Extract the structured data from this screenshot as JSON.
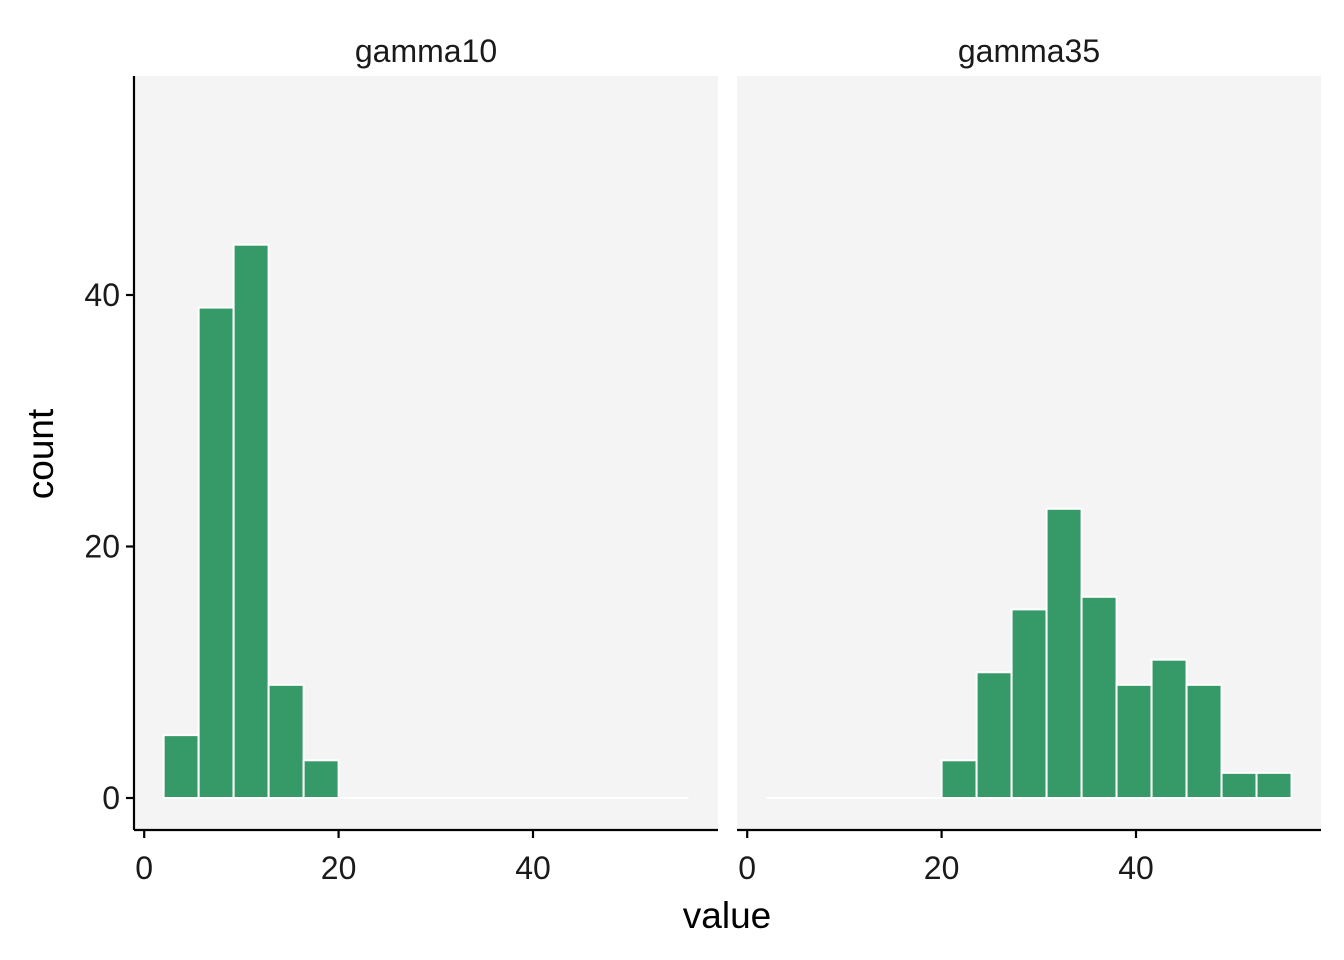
{
  "chart_data": {
    "type": "bar",
    "subtype": "faceted-histogram",
    "xlabel": "value",
    "ylabel": "count",
    "xlim": [
      0,
      56
    ],
    "ylim": [
      0,
      56
    ],
    "x_ticks": [
      0,
      20,
      40
    ],
    "y_ticks": [
      0,
      20,
      40
    ],
    "bar_color": "#359a68",
    "panel_background": "#f4f4f4",
    "grid": false,
    "legend": "none",
    "bin_width": 3.6,
    "bin_edges": [
      2.0,
      5.6,
      9.2,
      12.8,
      16.4,
      20.0,
      23.6,
      27.2,
      30.8,
      34.4,
      38.0,
      41.6,
      45.2,
      48.8,
      52.4,
      56.0
    ],
    "panels": [
      {
        "name": "gamma10",
        "counts": [
          5,
          39,
          44,
          9,
          3,
          0,
          0,
          0,
          0,
          0,
          0,
          0,
          0,
          0,
          0
        ]
      },
      {
        "name": "gamma35",
        "counts": [
          0,
          0,
          0,
          0,
          0,
          3,
          10,
          15,
          23,
          16,
          9,
          11,
          9,
          2,
          2
        ]
      }
    ]
  }
}
